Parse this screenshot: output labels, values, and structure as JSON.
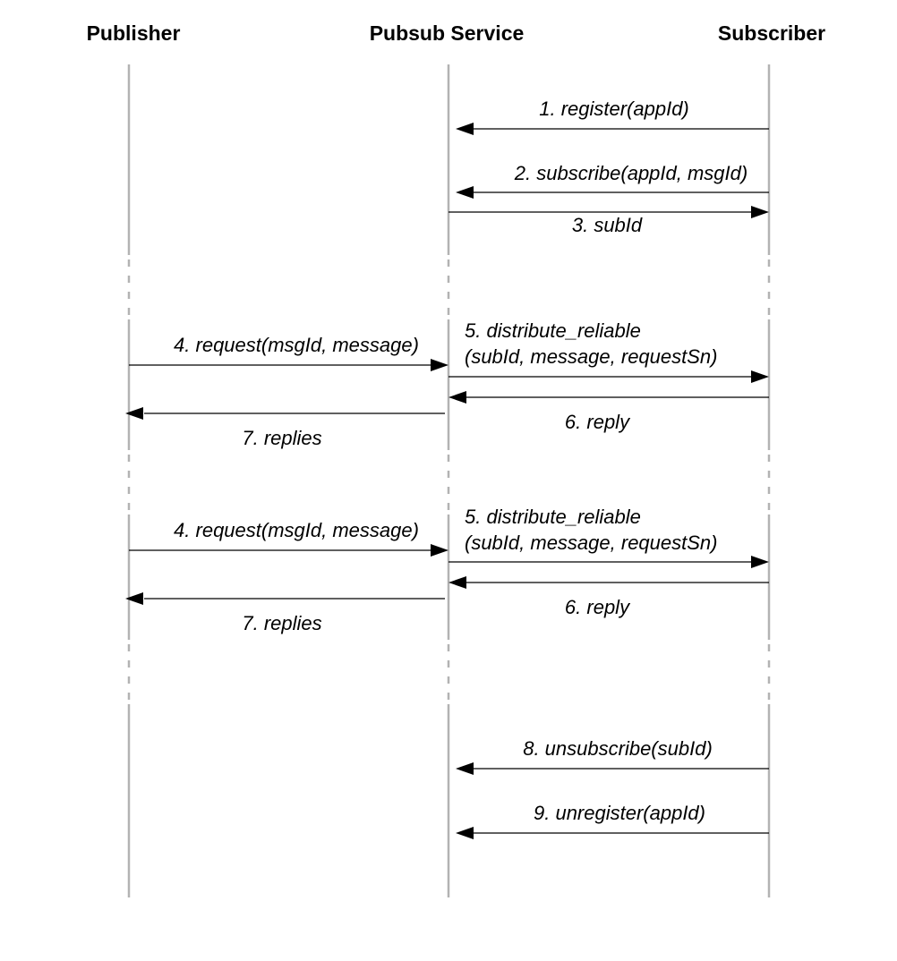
{
  "participants": {
    "publisher": "Publisher",
    "service": "Pubsub Service",
    "subscriber": "Subscriber"
  },
  "messages": {
    "register": "1. register(appId)",
    "subscribe": "2. subscribe(appId, msgId)",
    "subid": "3. subId",
    "request_a": "4. request(msgId, message)",
    "distribute_a_line1": "5. distribute_reliable",
    "distribute_a_line2": "(subId, message, requestSn)",
    "reply_a": "6. reply",
    "replies_a": "7. replies",
    "request_b": "4. request(msgId, message)",
    "distribute_b_line1": "5. distribute_reliable",
    "distribute_b_line2": "(subId, message, requestSn)",
    "reply_b": "6. reply",
    "replies_b": "7. replies",
    "unsubscribe": "8. unsubscribe(subId)",
    "unregister": "9. unregister(appId)"
  }
}
